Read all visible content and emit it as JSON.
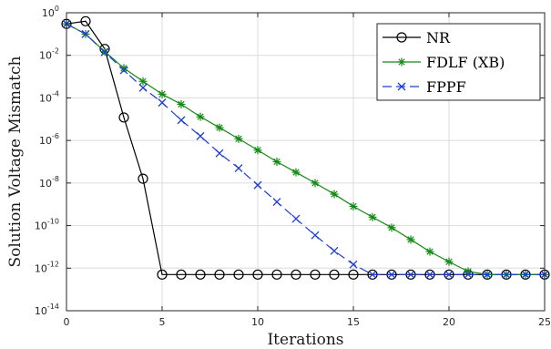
{
  "chart_data": {
    "type": "line",
    "title": "",
    "xlabel": "Iterations",
    "ylabel": "Solution Voltage Mismatch",
    "xlim": [
      0,
      25
    ],
    "ylim_log10": [
      -14,
      0
    ],
    "y_scale": "log",
    "grid": true,
    "legend_placement": "top-right",
    "x_ticks": [
      "0",
      "5",
      "10",
      "15",
      "20",
      "25"
    ],
    "y_ticks": [
      {
        "base": "10",
        "exp": "0",
        "v": 0
      },
      {
        "base": "10",
        "exp": "-2",
        "v": -2
      },
      {
        "base": "10",
        "exp": "-4",
        "v": -4
      },
      {
        "base": "10",
        "exp": "-6",
        "v": -6
      },
      {
        "base": "10",
        "exp": "-8",
        "v": -8
      },
      {
        "base": "10",
        "exp": "-10",
        "v": -10
      },
      {
        "base": "10",
        "exp": "-12",
        "v": -12
      },
      {
        "base": "10",
        "exp": "-14",
        "v": -14
      }
    ],
    "series": [
      {
        "name": "NR",
        "color": "#000000",
        "marker": "circle",
        "dash": "",
        "x": [
          0,
          1,
          2,
          3,
          4,
          5,
          6,
          7,
          8,
          9,
          10,
          11,
          12,
          13,
          14,
          15,
          16,
          17,
          18,
          19,
          20,
          21,
          22,
          23,
          24,
          25
        ],
        "y": [
          0.3,
          0.4,
          0.02,
          1.2e-05,
          1.6e-08,
          5e-13,
          5e-13,
          5e-13,
          5e-13,
          5e-13,
          5e-13,
          5e-13,
          5e-13,
          5e-13,
          5e-13,
          5e-13,
          5e-13,
          5e-13,
          5e-13,
          5e-13,
          5e-13,
          5e-13,
          5e-13,
          5e-13,
          5e-13,
          5e-13
        ]
      },
      {
        "name": "FDLF (XB)",
        "color": "#138a13",
        "marker": "star",
        "dash": "",
        "x": [
          0,
          1,
          2,
          3,
          4,
          5,
          6,
          7,
          8,
          9,
          10,
          11,
          12,
          13,
          14,
          15,
          16,
          17,
          18,
          19,
          20,
          21,
          22,
          23,
          24,
          25
        ],
        "y": [
          0.3,
          0.1,
          0.015,
          0.0025,
          0.0006,
          0.00015,
          5e-05,
          1.3e-05,
          4e-06,
          1.2e-06,
          3.5e-07,
          1e-07,
          3.2e-08,
          1e-08,
          3e-09,
          8e-10,
          2.5e-10,
          8e-11,
          2.2e-11,
          6e-12,
          2e-12,
          7e-13,
          5e-13,
          5e-13,
          5e-13,
          5e-13
        ]
      },
      {
        "name": "FPPF",
        "color": "#1f3ed6",
        "marker": "x",
        "dash": "10,5",
        "x": [
          0,
          1,
          2,
          3,
          4,
          5,
          6,
          7,
          8,
          9,
          10,
          11,
          12,
          13,
          14,
          15,
          16,
          17,
          18,
          19,
          20,
          21,
          22,
          23,
          24,
          25
        ],
        "y": [
          0.3,
          0.1,
          0.014,
          0.002,
          0.0003,
          6e-05,
          9e-06,
          1.6e-06,
          2.5e-07,
          5e-08,
          8e-09,
          1.3e-09,
          2.1e-10,
          3.5e-11,
          6.5e-12,
          1.5e-12,
          5e-13,
          5e-13,
          5e-13,
          5e-13,
          5e-13,
          5e-13,
          5e-13,
          5e-13,
          5e-13,
          5e-13
        ]
      }
    ]
  }
}
